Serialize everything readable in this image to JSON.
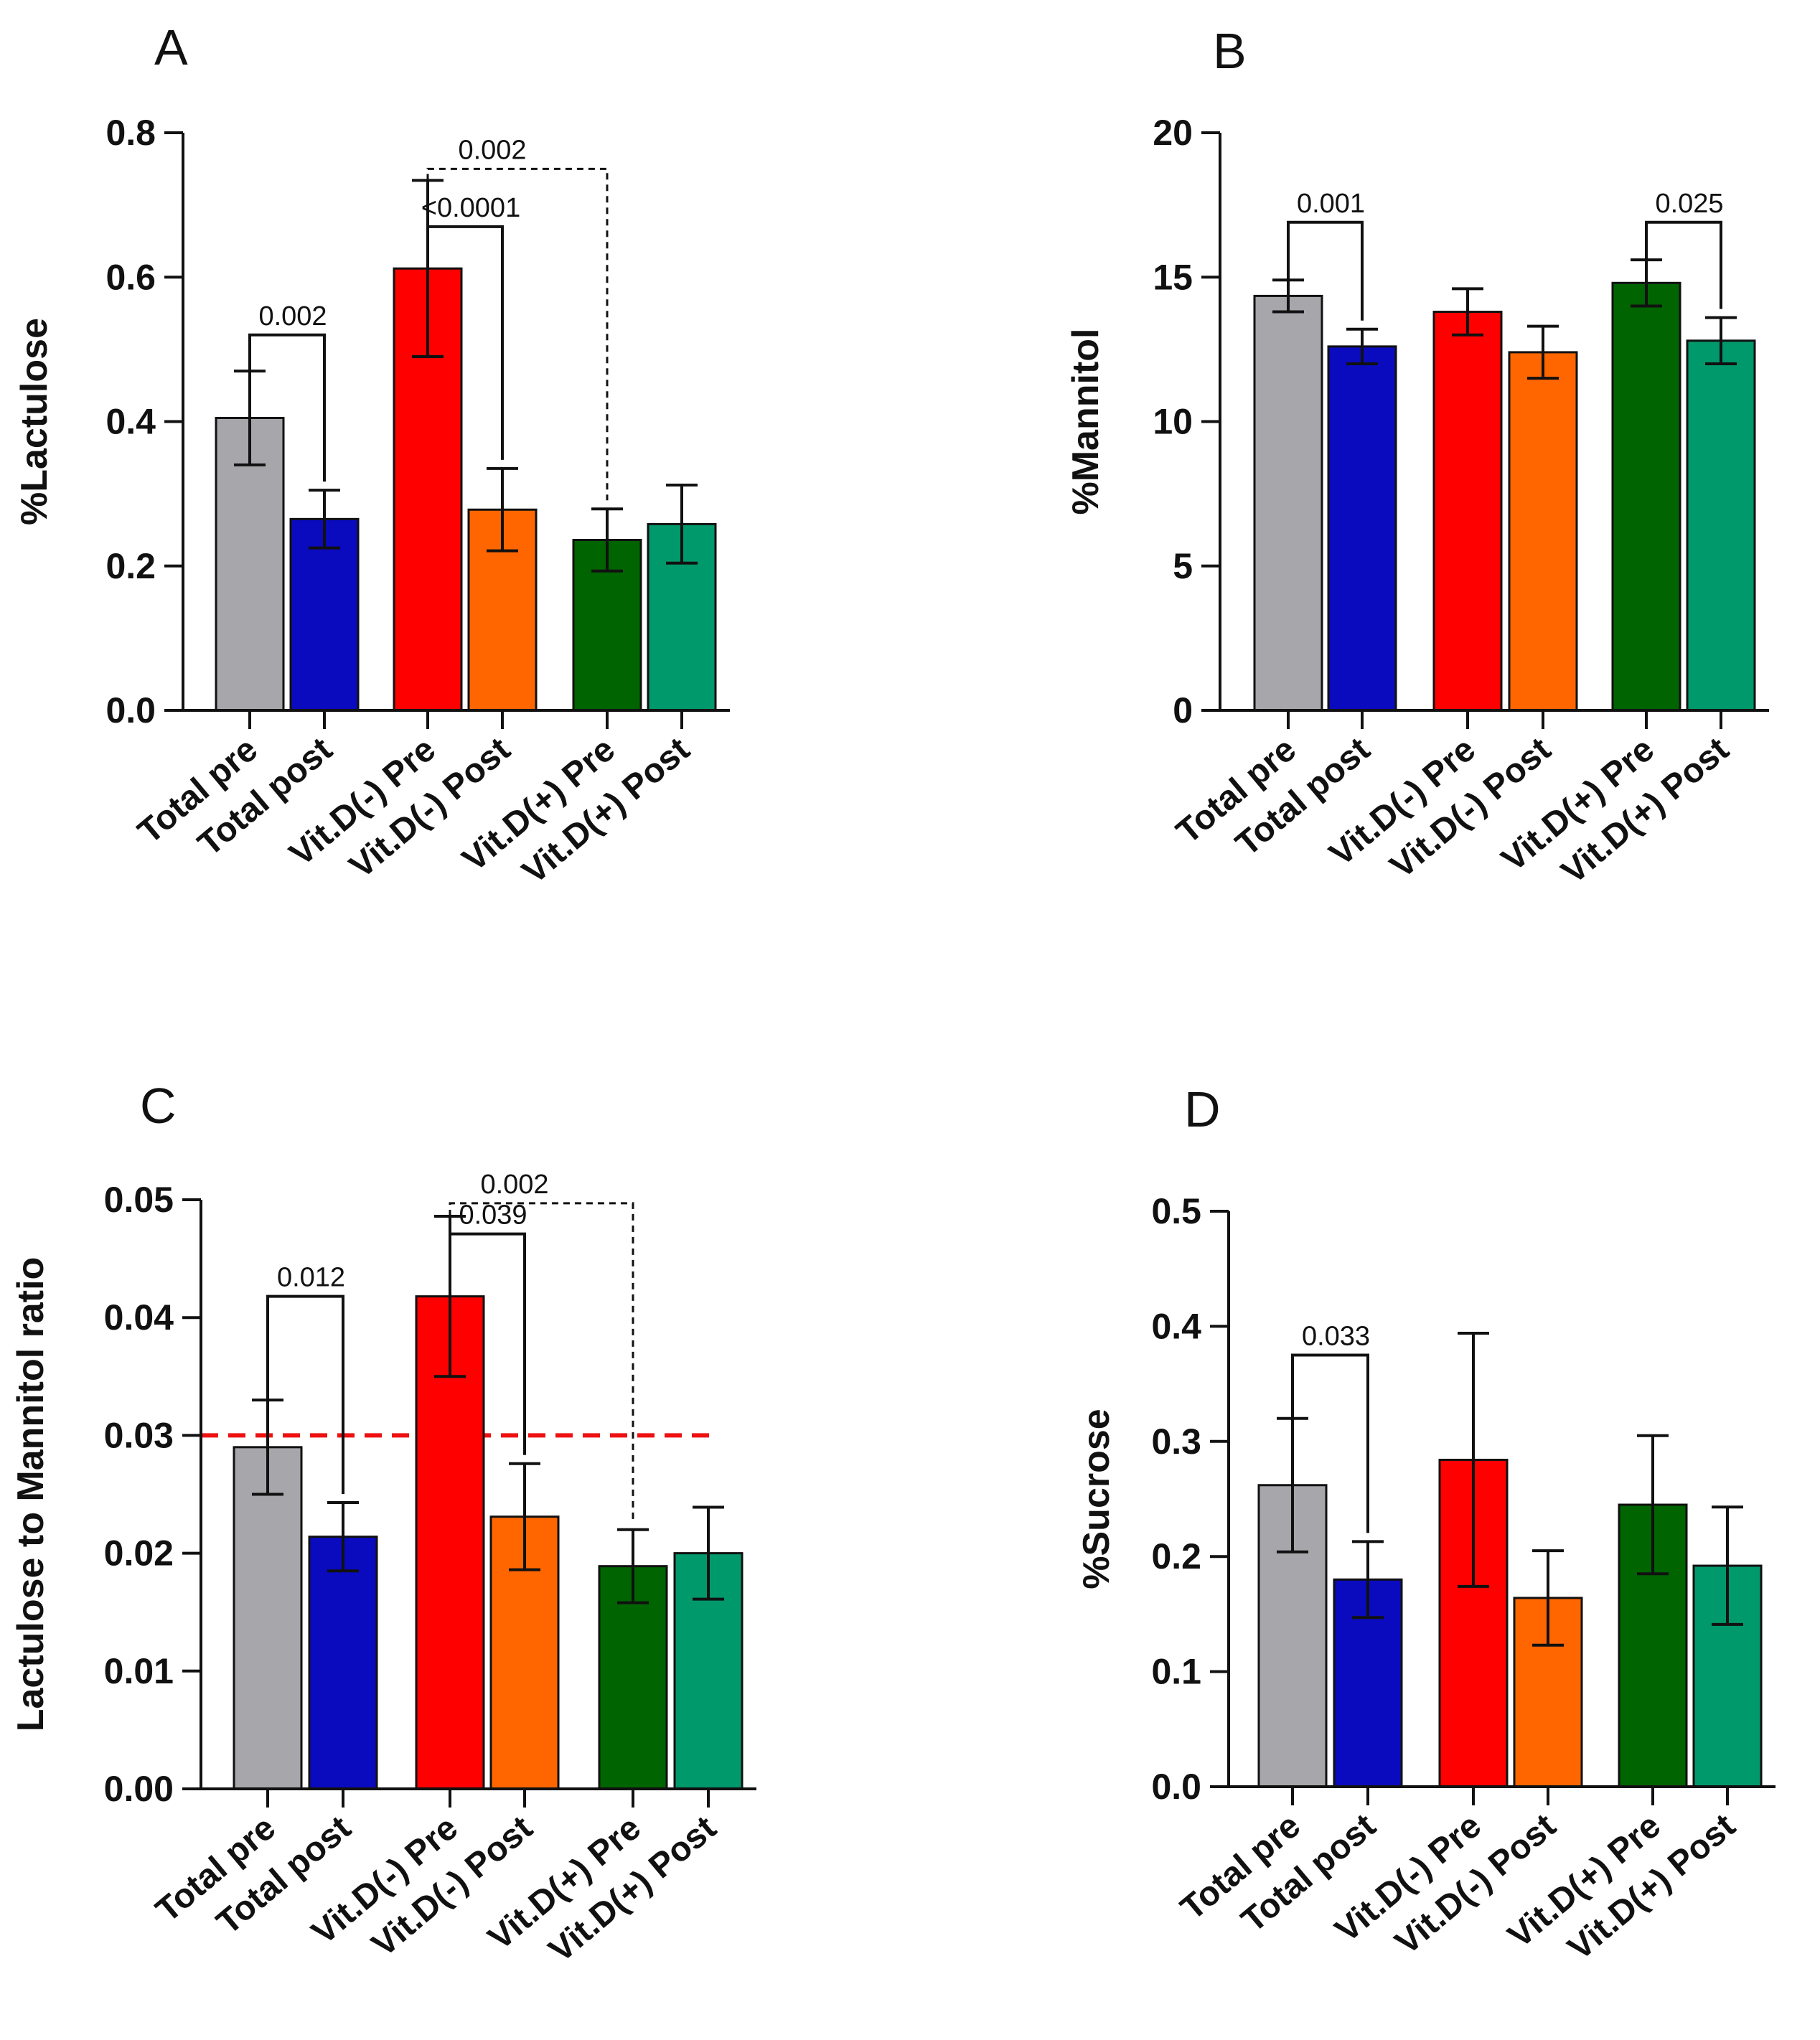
{
  "chart_data": [
    {
      "panel": "A",
      "type": "bar",
      "ylabel": "%Lactulose",
      "ylim": [
        0,
        0.8
      ],
      "yticks": [
        "0.0",
        "0.2",
        "0.4",
        "0.6",
        "0.8"
      ],
      "categories": [
        "Total pre",
        "Total post",
        "Vit.D(-) Pre",
        "Vit.D(-) Post",
        "Vit.D(+) Pre",
        "Vit.D(+) Post"
      ],
      "values": [
        0.405,
        0.265,
        0.612,
        0.278,
        0.236,
        0.258
      ],
      "errors": [
        0.065,
        0.04,
        0.122,
        0.057,
        0.043,
        0.054
      ],
      "colors": [
        "#a6a6ab",
        "#0a0abf",
        "#ff0000",
        "#ff6600",
        "#006400",
        "#00996b"
      ],
      "comparisons": [
        {
          "a": 0,
          "b": 1,
          "label": "0.002",
          "level": 0.52,
          "dashed": false
        },
        {
          "a": 2,
          "b": 3,
          "label": "<0.0001",
          "level": 0.67,
          "dashed": false
        },
        {
          "a": 2,
          "b": 4,
          "label": "0.002",
          "level": 0.75,
          "dashed": true
        }
      ]
    },
    {
      "panel": "B",
      "type": "bar",
      "ylabel": "%Mannitol",
      "ylim": [
        0,
        20
      ],
      "yticks": [
        "0",
        "5",
        "10",
        "15",
        "20"
      ],
      "categories": [
        "Total pre",
        "Total post",
        "Vit.D(-) Pre",
        "Vit.D(-) Post",
        "Vit.D(+) Pre",
        "Vit.D(+) Post"
      ],
      "values": [
        14.35,
        12.6,
        13.8,
        12.4,
        14.8,
        12.8
      ],
      "errors": [
        0.55,
        0.6,
        0.8,
        0.9,
        0.8,
        0.8
      ],
      "colors": [
        "#a6a6ab",
        "#0a0abf",
        "#ff0000",
        "#ff6600",
        "#006400",
        "#00996b"
      ],
      "comparisons": [
        {
          "a": 0,
          "b": 1,
          "label": "0.001",
          "level": 16.9,
          "dashed": false
        },
        {
          "a": 4,
          "b": 5,
          "label": "0.025",
          "level": 16.9,
          "dashed": false
        }
      ]
    },
    {
      "panel": "C",
      "type": "bar",
      "ylabel": "Lactulose to Mannitol ratio",
      "ylim": [
        0,
        0.05
      ],
      "yticks": [
        "0.00",
        "0.01",
        "0.02",
        "0.03",
        "0.04",
        "0.05"
      ],
      "categories": [
        "Total pre",
        "Total post",
        "Vit.D(-) Pre",
        "Vit.D(-) Post",
        "Vit.D(+) Pre",
        "Vit.D(+) Post"
      ],
      "values": [
        0.029,
        0.0214,
        0.0418,
        0.0231,
        0.0189,
        0.02
      ],
      "errors": [
        0.004,
        0.0029,
        0.0068,
        0.0045,
        0.0031,
        0.0039
      ],
      "colors": [
        "#a6a6ab",
        "#0a0abf",
        "#ff0000",
        "#ff6600",
        "#006400",
        "#00996b"
      ],
      "reference_line": {
        "value": 0.03,
        "color": "#ee1111"
      },
      "comparisons": [
        {
          "a": 0,
          "b": 1,
          "label": "0.012",
          "level": 0.0418,
          "dashed": false
        },
        {
          "a": 2,
          "b": 3,
          "label": "0.039",
          "level": 0.0471,
          "dashed": false
        },
        {
          "a": 2,
          "b": 4,
          "label": "0.002",
          "level": 0.0497,
          "dashed": true
        }
      ]
    },
    {
      "panel": "D",
      "type": "bar",
      "ylabel": "%Sucrose",
      "ylim": [
        0,
        0.5
      ],
      "yticks": [
        "0.0",
        "0.1",
        "0.2",
        "0.3",
        "0.4",
        "0.5"
      ],
      "categories": [
        "Total pre",
        "Total post",
        "Vit.D(-) Pre",
        "Vit.D(-) Post",
        "Vit.D(+) Pre",
        "Vit.D(+) Post"
      ],
      "values": [
        0.262,
        0.18,
        0.284,
        0.164,
        0.245,
        0.192
      ],
      "errors": [
        0.058,
        0.033,
        0.11,
        0.041,
        0.06,
        0.051
      ],
      "colors": [
        "#a6a6ab",
        "#0a0abf",
        "#ff0000",
        "#ff6600",
        "#006400",
        "#00996b"
      ],
      "comparisons": [
        {
          "a": 0,
          "b": 1,
          "label": "0.033",
          "level": 0.375,
          "dashed": false
        }
      ]
    }
  ]
}
